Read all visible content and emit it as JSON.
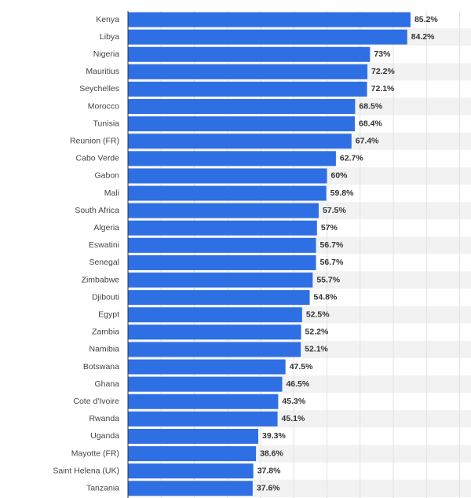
{
  "chart_data": {
    "type": "bar",
    "orientation": "horizontal",
    "categories": [
      "Kenya",
      "Libya",
      "Nigeria",
      "Mauritius",
      "Seychelles",
      "Morocco",
      "Tunisia",
      "Reunion (FR)",
      "Cabo Verde",
      "Gabon",
      "Mali",
      "South Africa",
      "Algeria",
      "Eswatini",
      "Senegal",
      "Zimbabwe",
      "Djibouti",
      "Egypt",
      "Zambia",
      "Namibia",
      "Botswana",
      "Ghana",
      "Cote d'Ivoire",
      "Rwanda",
      "Uganda",
      "Mayotte (FR)",
      "Saint Helena (UK)",
      "Tanzania"
    ],
    "values": [
      85.2,
      84.2,
      73,
      72.2,
      72.1,
      68.5,
      68.4,
      67.4,
      62.7,
      60,
      59.8,
      57.5,
      57,
      56.7,
      56.7,
      55.7,
      54.8,
      52.5,
      52.2,
      52.1,
      47.5,
      46.5,
      45.3,
      45.1,
      39.3,
      38.6,
      37.8,
      37.6
    ],
    "value_labels": [
      "85.2%",
      "84.2%",
      "73%",
      "72.2%",
      "72.1%",
      "68.5%",
      "68.4%",
      "67.4%",
      "62.7%",
      "60%",
      "59.8%",
      "57.5%",
      "57%",
      "56.7%",
      "56.7%",
      "55.7%",
      "54.8%",
      "52.5%",
      "52.2%",
      "52.1%",
      "47.5%",
      "46.5%",
      "45.3%",
      "45.1%",
      "39.3%",
      "38.6%",
      "37.8%",
      "37.6%"
    ],
    "color": "#2f6fe4",
    "xlim": [
      0,
      100
    ],
    "xticks": [
      0,
      10,
      20,
      30,
      40,
      50,
      60,
      70,
      80,
      90,
      100
    ],
    "grid": true
  }
}
